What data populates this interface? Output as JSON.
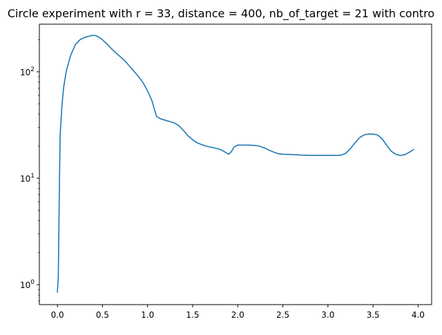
{
  "chart_data": {
    "type": "line",
    "title": "Circle experiment with r = 33, distance = 400, nb_of_target = 21 with contro",
    "xlabel": "",
    "ylabel": "",
    "yscale": "log",
    "xlim": [
      -0.2,
      4.15
    ],
    "ylim": [
      0.65,
      280
    ],
    "grid": false,
    "x_ticks": [
      0.0,
      0.5,
      1.0,
      1.5,
      2.0,
      2.5,
      3.0,
      3.5,
      4.0
    ],
    "x_tick_labels": [
      "0.0",
      "0.5",
      "1.0",
      "1.5",
      "2.0",
      "2.5",
      "3.0",
      "3.5",
      "4.0"
    ],
    "y_ticks": [
      1,
      10,
      100
    ],
    "y_tick_labels": [
      "10^0",
      "10^1",
      "10^2"
    ],
    "series": [
      {
        "color": "#1f77b4",
        "x": [
          0.0,
          0.01,
          0.02,
          0.03,
          0.05,
          0.07,
          0.1,
          0.15,
          0.2,
          0.25,
          0.3,
          0.35,
          0.4,
          0.42,
          0.45,
          0.5,
          0.55,
          0.6,
          0.65,
          0.7,
          0.75,
          0.8,
          0.85,
          0.9,
          0.95,
          1.0,
          1.05,
          1.08,
          1.1,
          1.15,
          1.2,
          1.25,
          1.3,
          1.35,
          1.4,
          1.45,
          1.5,
          1.55,
          1.6,
          1.65,
          1.7,
          1.75,
          1.8,
          1.85,
          1.9,
          1.93,
          1.96,
          2.0,
          2.05,
          2.1,
          2.15,
          2.2,
          2.25,
          2.3,
          2.35,
          2.4,
          2.45,
          2.5,
          2.6,
          2.7,
          2.8,
          2.9,
          3.0,
          3.1,
          3.15,
          3.2,
          3.25,
          3.3,
          3.35,
          3.4,
          3.45,
          3.5,
          3.55,
          3.6,
          3.65,
          3.7,
          3.75,
          3.8,
          3.85,
          3.9,
          3.95
        ],
        "y": [
          0.85,
          1.2,
          6,
          25,
          48,
          72,
          103,
          145,
          180,
          200,
          210,
          216,
          220,
          219,
          214,
          200,
          182,
          165,
          150,
          138,
          126,
          113,
          101,
          90,
          79,
          66,
          53,
          43,
          38,
          36,
          35,
          34,
          33,
          31,
          28,
          25,
          23,
          21.5,
          20.7,
          20,
          19.6,
          19.2,
          18.7,
          17.8,
          16.8,
          17.8,
          19.7,
          20.5,
          20.5,
          20.5,
          20.4,
          20.3,
          19.9,
          19.2,
          18.3,
          17.6,
          17.0,
          16.8,
          16.7,
          16.5,
          16.4,
          16.4,
          16.4,
          16.4,
          16.5,
          17.2,
          19.0,
          21.5,
          24.0,
          25.5,
          26.0,
          26.0,
          25.5,
          23.5,
          20.5,
          18.0,
          16.8,
          16.4,
          16.6,
          17.5,
          18.6
        ]
      }
    ]
  }
}
